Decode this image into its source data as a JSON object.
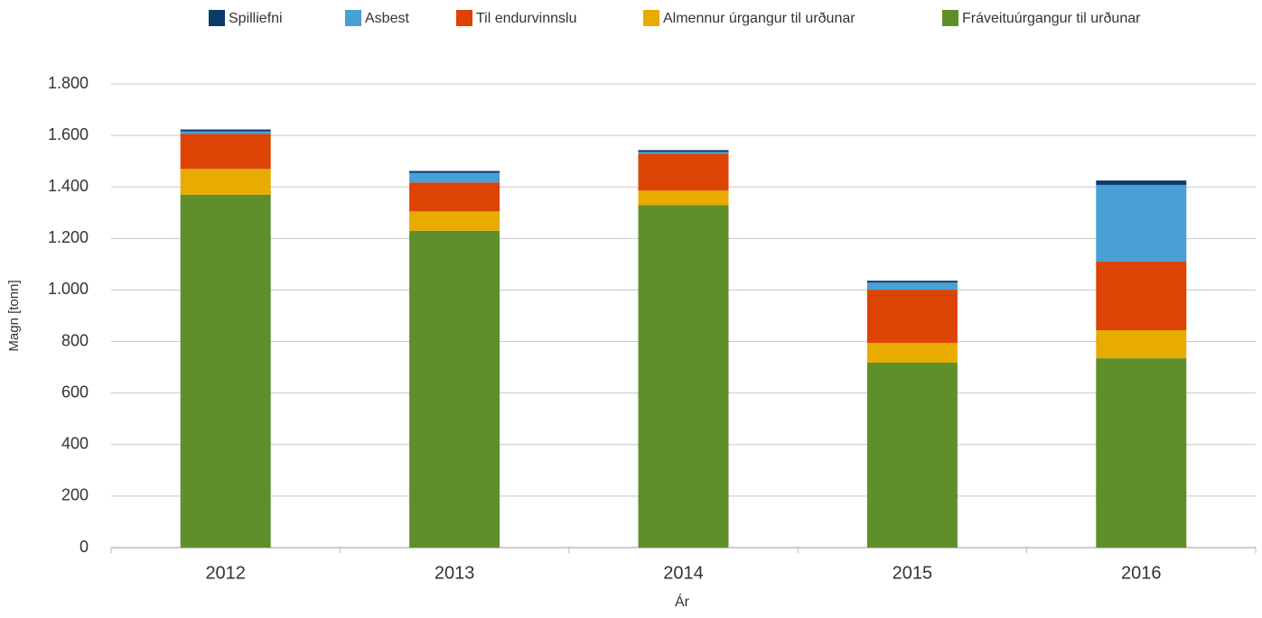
{
  "chart_data": {
    "type": "stacked_bar",
    "x_label": "Ár",
    "y_label": "Magn [tonn]",
    "categories": [
      "2012",
      "2013",
      "2014",
      "2015",
      "2016"
    ],
    "series": [
      {
        "name": "Spilliefni",
        "color": "#0b3a6b",
        "values": [
          7,
          7,
          7,
          7,
          17
        ]
      },
      {
        "name": "Asbest",
        "color": "#4a9fd4",
        "values": [
          10,
          38,
          7,
          28,
          298
        ]
      },
      {
        "name": "Til endurvinnslu",
        "color": "#dc4305",
        "values": [
          136,
          112,
          143,
          206,
          266
        ]
      },
      {
        "name": "Almennur úrgangur til urðunar",
        "color": "#e8ab00",
        "values": [
          100,
          75,
          56,
          77,
          109
        ]
      },
      {
        "name": "Fráveituúrgangur til urðunar",
        "color": "#5f8f2a",
        "values": [
          1370,
          1230,
          1330,
          718,
          735
        ]
      }
    ],
    "ylim": [
      0,
      1800
    ],
    "yticks": [
      0,
      200,
      400,
      600,
      800,
      {
        "value": 1000,
        "label": "1.000"
      },
      {
        "value": 1200,
        "label": "1.200"
      },
      {
        "value": 1400,
        "label": "1.400"
      },
      {
        "value": 1600,
        "label": "1.600"
      },
      {
        "value": 1800,
        "label": "1.800"
      }
    ],
    "grid": true,
    "legend": "top"
  }
}
